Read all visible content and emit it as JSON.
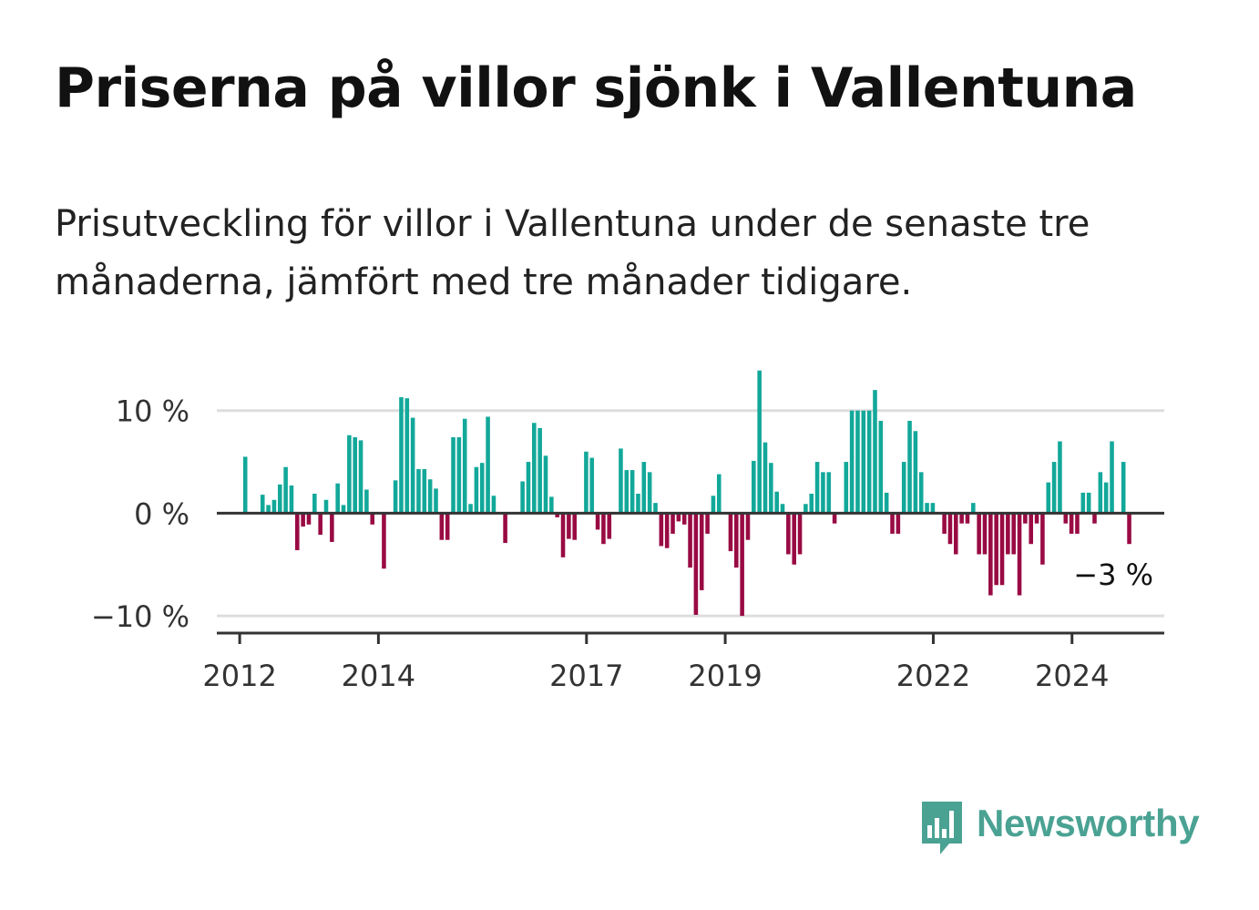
{
  "header": {
    "title": "Priserna på villor sjönk i Vallentuna",
    "subtitle": "Prisutveckling för villor i Vallentuna under de senaste tre månaderna, jämfört med tre månader tidigare."
  },
  "brand": {
    "name": "Newsworthy",
    "color": "#4aa293",
    "icon": "bar-chart-speech-bubble-icon"
  },
  "colors": {
    "positive": "#12a89a",
    "negative": "#990a43",
    "gridline": "#dddddd",
    "axis": "#333333",
    "label": "#333333"
  },
  "chart_data": {
    "type": "bar",
    "title": "Priserna på villor sjönk i Vallentuna",
    "xlabel": "",
    "ylabel": "",
    "ylim": [
      -11.5,
      14.5
    ],
    "y_ticks": [
      10,
      0,
      -10
    ],
    "y_tick_labels": [
      "10 %",
      "0 %",
      "−10 %"
    ],
    "x_ticks": [
      2012,
      2014,
      2017,
      2019,
      2022,
      2024
    ],
    "x_tick_labels": [
      "2012",
      "2014",
      "2017",
      "2019",
      "2022",
      "2024"
    ],
    "x_start": 2011.67,
    "x_end": 2025.33,
    "last_value_label": "−3 %",
    "gridlines": true,
    "series": [
      {
        "name": "Prisutveckling",
        "start": 2012.08,
        "step": 0.0833,
        "values": [
          5.5,
          null,
          null,
          1.8,
          0.8,
          1.3,
          2.8,
          4.5,
          2.7,
          -3.6,
          -1.3,
          -1.1,
          1.9,
          -2.1,
          1.3,
          -2.8,
          2.9,
          0.8,
          7.6,
          7.4,
          7.1,
          2.3,
          -1.1,
          null,
          -5.4,
          null,
          3.2,
          11.3,
          11.2,
          9.3,
          4.3,
          4.3,
          3.3,
          2.4,
          -2.6,
          -2.6,
          7.4,
          7.4,
          9.2,
          0.9,
          4.5,
          4.9,
          9.4,
          1.7,
          null,
          -2.9,
          null,
          null,
          3.1,
          5.0,
          8.8,
          8.3,
          5.6,
          1.6,
          -0.4,
          -4.3,
          -2.5,
          -2.6,
          null,
          6.0,
          5.4,
          -1.6,
          -3.0,
          -2.5,
          null,
          6.3,
          4.2,
          4.2,
          1.9,
          5.0,
          4.0,
          1.0,
          -3.2,
          -3.4,
          -2.0,
          -0.8,
          -1.1,
          -5.3,
          -9.9,
          -7.5,
          -2.0,
          1.7,
          3.8,
          null,
          -3.7,
          -5.3,
          -10.0,
          -2.6,
          5.1,
          13.9,
          6.9,
          4.9,
          2.1,
          0.9,
          -4.0,
          -5.0,
          -4.0,
          0.9,
          1.9,
          5.0,
          4.0,
          4.0,
          -1.0,
          null,
          5.0,
          10.0,
          10.0,
          10.0,
          10.0,
          12.0,
          9.0,
          2.0,
          -2.0,
          -2.0,
          5.0,
          9.0,
          8.0,
          4.0,
          1.0,
          1.0,
          null,
          -2.0,
          -3.0,
          -4.0,
          -1.0,
          -1.0,
          1.0,
          -4.0,
          -4.0,
          -8.0,
          -7.0,
          -7.0,
          -4.0,
          -4.0,
          -8.0,
          -1.0,
          -3.0,
          -1.0,
          -5.0,
          3.0,
          5.0,
          7.0,
          -1.0,
          -2.0,
          -2.0,
          2.0,
          2.0,
          -1.0,
          4.0,
          3.0,
          7.0,
          null,
          5.0,
          -3.0
        ]
      }
    ]
  }
}
